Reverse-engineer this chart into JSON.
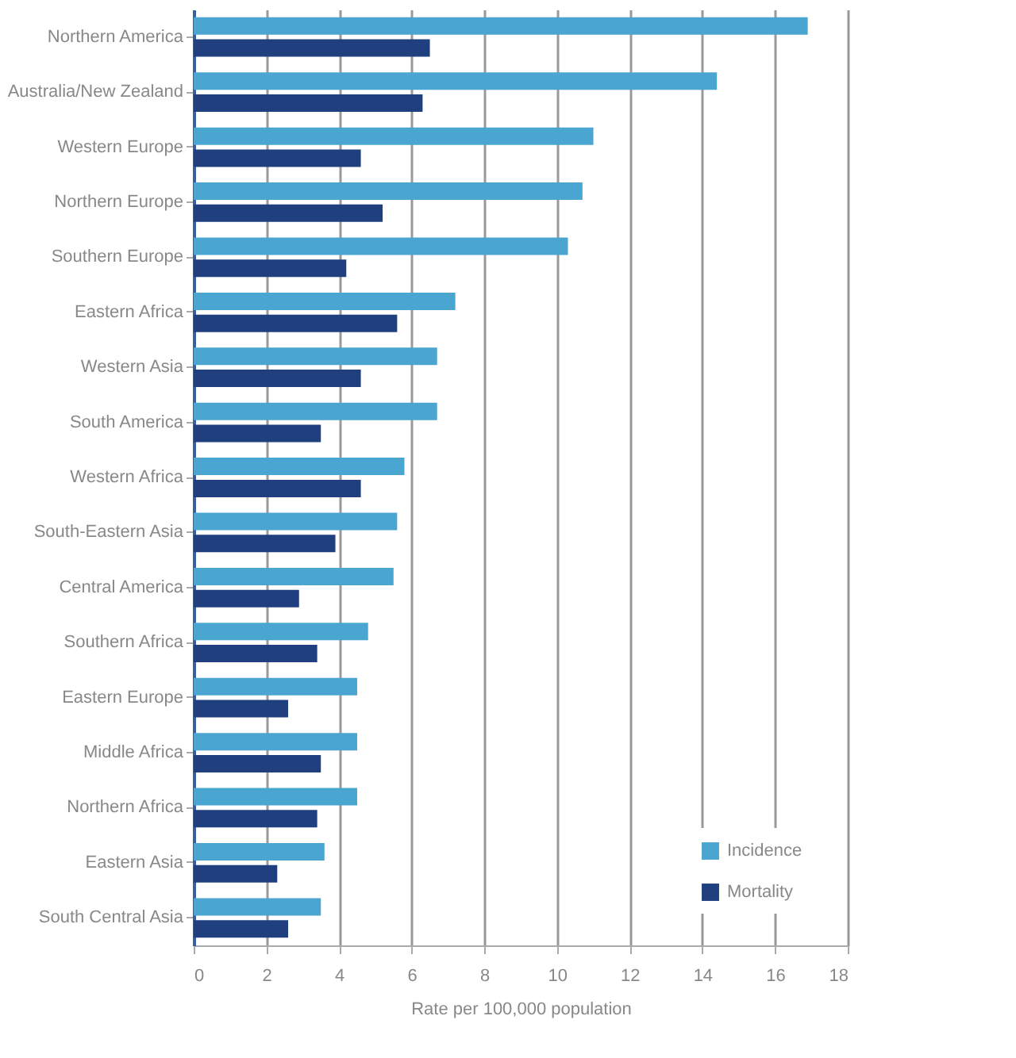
{
  "chart_data": {
    "type": "bar",
    "orientation": "horizontal",
    "xlabel": "Rate per 100,000 population",
    "categories": [
      "Northern America",
      "Australia/New Zealand",
      "Western Europe",
      "Northern Europe",
      "Southern Europe",
      "Eastern Africa",
      "Western Asia",
      "South America",
      "Western Africa",
      "South-Eastern Asia",
      "Central America",
      "Southern Africa",
      "Eastern Europe",
      "Middle Africa",
      "Northern Africa",
      "Eastern Asia",
      "South Central Asia"
    ],
    "series": [
      {
        "name": "Incidence",
        "color": "#4aa6d0",
        "values": [
          16.9,
          14.4,
          11.0,
          10.7,
          10.3,
          7.2,
          6.7,
          6.7,
          5.8,
          5.6,
          5.5,
          4.8,
          4.5,
          4.5,
          4.5,
          3.6,
          3.5
        ]
      },
      {
        "name": "Mortality",
        "color": "#1f3f7f",
        "values": [
          6.5,
          6.3,
          4.6,
          5.2,
          4.2,
          5.6,
          4.6,
          3.5,
          4.6,
          3.9,
          2.9,
          3.4,
          2.6,
          3.5,
          3.4,
          2.3,
          2.6
        ]
      }
    ],
    "xlim": [
      0,
      18
    ],
    "xticks": [
      0,
      2,
      4,
      6,
      8,
      10,
      12,
      14,
      16,
      18
    ],
    "grid": "x",
    "legend": "bottom right"
  }
}
